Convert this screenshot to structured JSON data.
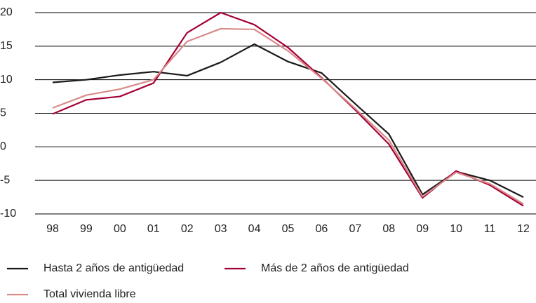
{
  "chart_data": {
    "type": "line",
    "categories": [
      "98",
      "99",
      "00",
      "01",
      "02",
      "03",
      "04",
      "05",
      "06",
      "07",
      "08",
      "09",
      "10",
      "11",
      "12"
    ],
    "series": [
      {
        "name": "Hasta 2 años de antigüedad",
        "color": "#1a1a1a",
        "values": [
          9.6,
          10.0,
          10.7,
          11.2,
          10.6,
          12.6,
          15.3,
          12.7,
          11.0,
          6.4,
          1.9,
          -7.1,
          -3.7,
          -5.0,
          -7.5
        ]
      },
      {
        "name": "Más de 2 años de antigüedad",
        "color": "#a50034",
        "values": [
          4.9,
          7.0,
          7.5,
          9.5,
          17.0,
          20.0,
          18.2,
          14.8,
          10.3,
          5.5,
          0.4,
          -7.6,
          -3.6,
          -5.7,
          -8.8
        ]
      },
      {
        "name": "Total vivienda libre",
        "color": "#d98a8a",
        "values": [
          5.8,
          7.7,
          8.6,
          10.0,
          15.7,
          17.6,
          17.5,
          14.3,
          10.2,
          5.7,
          1.0,
          -7.4,
          -3.8,
          -5.5,
          -8.5
        ]
      }
    ],
    "ylim": [
      -10,
      20
    ],
    "yticks": [
      20,
      15,
      10,
      5,
      0,
      -5,
      -10
    ],
    "grid": true
  }
}
